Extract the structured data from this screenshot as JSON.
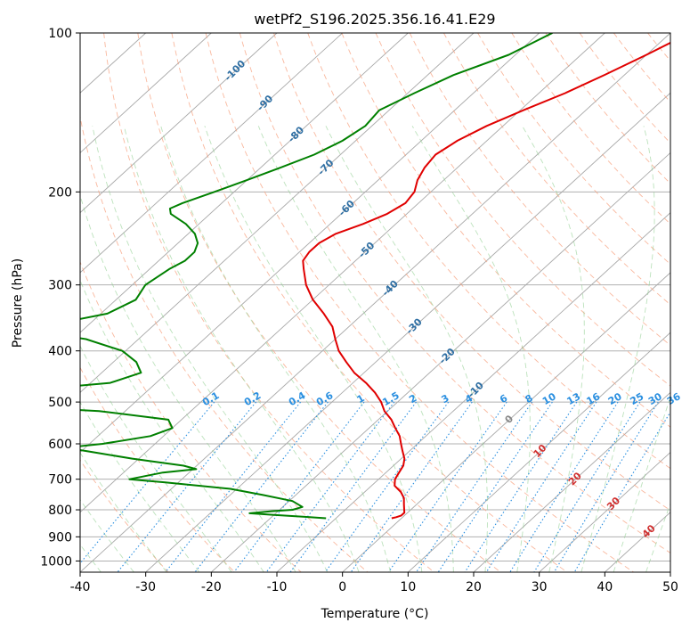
{
  "chart_data": {
    "type": "skew-t",
    "title": "wetPf2_S196.2025.356.16.41.E29",
    "xlabel": "Temperature (°C)",
    "ylabel": "Pressure (hPa)",
    "xlim": [
      -40,
      50
    ],
    "ylim": [
      1050,
      100
    ],
    "x_ticks": [
      "-40",
      "-30",
      "-20",
      "-10",
      "0",
      "10",
      "20",
      "30",
      "40",
      "50"
    ],
    "y_ticks": [
      "100",
      "200",
      "300",
      "400",
      "500",
      "600",
      "700",
      "800",
      "900",
      "1000"
    ],
    "temperature_profile": {
      "name": "Temperature",
      "color": "#e00000",
      "points": [
        [
          100,
          -37
        ],
        [
          110,
          -40
        ],
        [
          120,
          -43
        ],
        [
          130,
          -46
        ],
        [
          140,
          -49.5
        ],
        [
          150,
          -52.5
        ],
        [
          160,
          -54.5
        ],
        [
          170,
          -55.5
        ],
        [
          180,
          -55
        ],
        [
          190,
          -54
        ],
        [
          200,
          -52.5
        ],
        [
          210,
          -52
        ],
        [
          220,
          -53
        ],
        [
          230,
          -55
        ],
        [
          240,
          -57.5
        ],
        [
          250,
          -58.5
        ],
        [
          260,
          -58.5
        ],
        [
          270,
          -58
        ],
        [
          280,
          -56.5
        ],
        [
          300,
          -53.5
        ],
        [
          320,
          -50
        ],
        [
          340,
          -46
        ],
        [
          360,
          -42.5
        ],
        [
          380,
          -40
        ],
        [
          400,
          -37.5
        ],
        [
          420,
          -34.5
        ],
        [
          440,
          -31.5
        ],
        [
          460,
          -28
        ],
        [
          480,
          -25
        ],
        [
          500,
          -22.5
        ],
        [
          520,
          -20.5
        ],
        [
          540,
          -18
        ],
        [
          560,
          -16
        ],
        [
          580,
          -14
        ],
        [
          600,
          -12.5
        ],
        [
          620,
          -11
        ],
        [
          640,
          -9.5
        ],
        [
          660,
          -8.5
        ],
        [
          680,
          -8
        ],
        [
          700,
          -7.5
        ],
        [
          720,
          -6.5
        ],
        [
          740,
          -4.5
        ],
        [
          760,
          -3
        ],
        [
          780,
          -2
        ],
        [
          800,
          -1
        ],
        [
          810,
          -0.5
        ],
        [
          820,
          -0.5
        ],
        [
          826,
          -1
        ],
        [
          830,
          -1.5
        ]
      ]
    },
    "dewpoint_profile": {
      "name": "Dewpoint",
      "color": "#008000",
      "points": [
        [
          100,
          -58
        ],
        [
          110,
          -61
        ],
        [
          120,
          -66
        ],
        [
          130,
          -69
        ],
        [
          140,
          -71.5
        ],
        [
          150,
          -71
        ],
        [
          160,
          -72
        ],
        [
          170,
          -74
        ],
        [
          180,
          -77
        ],
        [
          190,
          -80
        ],
        [
          200,
          -83
        ],
        [
          210,
          -86
        ],
        [
          215,
          -87
        ],
        [
          220,
          -86
        ],
        [
          230,
          -82
        ],
        [
          240,
          -79
        ],
        [
          250,
          -77
        ],
        [
          260,
          -76
        ],
        [
          270,
          -76
        ],
        [
          280,
          -77
        ],
        [
          300,
          -78
        ],
        [
          320,
          -77
        ],
        [
          340,
          -79
        ],
        [
          360,
          -87
        ],
        [
          365,
          -87.5
        ],
        [
          370,
          -85
        ],
        [
          380,
          -78
        ],
        [
          400,
          -70.5
        ],
        [
          420,
          -66.5
        ],
        [
          440,
          -64
        ],
        [
          460,
          -67
        ],
        [
          480,
          -82
        ],
        [
          490,
          -100
        ],
        [
          500,
          -94
        ],
        [
          510,
          -79
        ],
        [
          520,
          -64
        ],
        [
          540,
          -52
        ],
        [
          560,
          -50
        ],
        [
          580,
          -52
        ],
        [
          600,
          -58
        ],
        [
          610,
          -63
        ],
        [
          620,
          -59
        ],
        [
          640,
          -51
        ],
        [
          660,
          -42
        ],
        [
          670,
          -39.5
        ],
        [
          680,
          -44
        ],
        [
          700,
          -48
        ],
        [
          710,
          -42
        ],
        [
          730,
          -31
        ],
        [
          750,
          -25
        ],
        [
          770,
          -19.5
        ],
        [
          790,
          -17
        ],
        [
          800,
          -18
        ],
        [
          805,
          -21
        ],
        [
          812,
          -24
        ],
        [
          818,
          -20
        ],
        [
          825,
          -15
        ],
        [
          830,
          -11.5
        ]
      ]
    },
    "dry_adiabat_labels": [
      "-100",
      "-90",
      "-80",
      "-70",
      "-60",
      "-50",
      "-40",
      "-30",
      "-20",
      "-10",
      "0"
    ],
    "moist_adiabat_labels": [
      "10",
      "20",
      "30",
      "40"
    ],
    "mixing_ratio_labels": [
      "0.1",
      "0.2",
      "0.4",
      "0.6",
      "1",
      "1.5",
      "2",
      "3",
      "4",
      "6",
      "8",
      "10",
      "13",
      "16",
      "20",
      "25",
      "30",
      "36"
    ]
  }
}
